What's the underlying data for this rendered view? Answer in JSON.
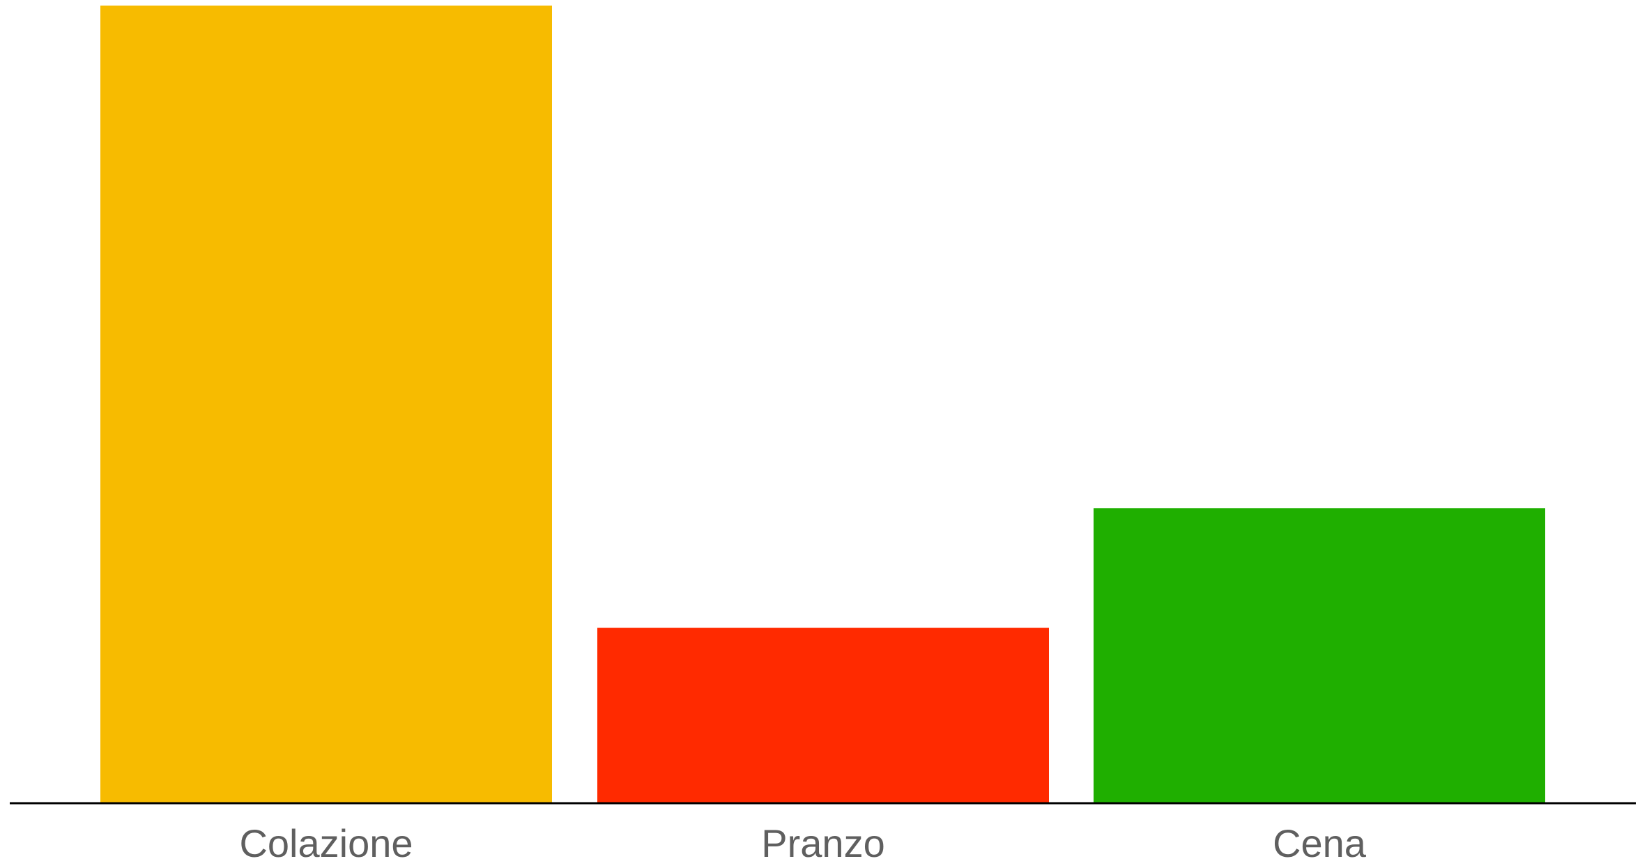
{
  "chart_data": {
    "type": "bar",
    "categories": [
      "Colazione",
      "Pranzo",
      "Cena"
    ],
    "values": [
      100,
      22,
      37
    ],
    "colors": [
      "#F7BB00",
      "#FF2A00",
      "#1FAF00"
    ],
    "title": "",
    "xlabel": "",
    "ylabel": "",
    "ylim": [
      0,
      100
    ],
    "grid": false,
    "legend": "none",
    "axis_color": "#000000",
    "label_color": "#5f5f5f"
  }
}
